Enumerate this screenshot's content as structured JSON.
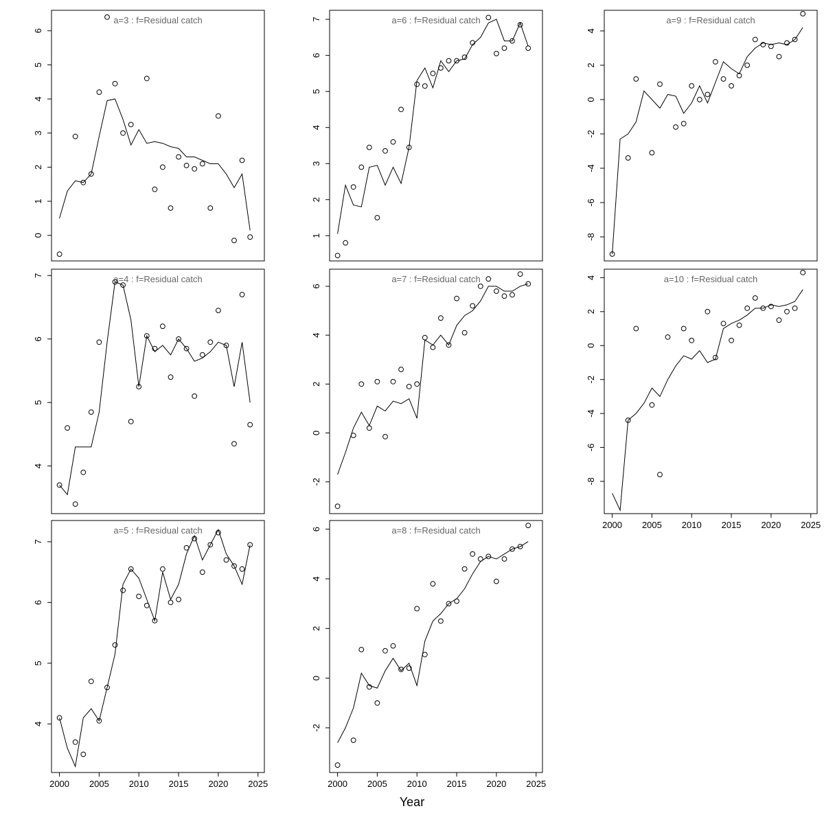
{
  "figure": {
    "xlabel": "Year",
    "background": "#ffffff",
    "title_color": "#666666",
    "line_color": "#000000",
    "point_color": "#000000",
    "line_years": [
      2000,
      2001,
      2002,
      2003,
      2004,
      2005,
      2006,
      2007,
      2008,
      2009,
      2010,
      2011,
      2012,
      2013,
      2014,
      2015,
      2016,
      2017,
      2018,
      2019,
      2020,
      2021,
      2022,
      2023,
      2024
    ],
    "x_ticks": [
      2000,
      2005,
      2010,
      2015,
      2020,
      2025
    ]
  },
  "chart_data": [
    {
      "id": "a3",
      "type": "line",
      "title": "a=3 : f=Residual catch",
      "xlim": [
        1999,
        2025.8
      ],
      "ylim": [
        -0.75,
        6.6
      ],
      "y_ticks": [
        0,
        1,
        2,
        3,
        4,
        5,
        6
      ],
      "line": {
        "y": [
          0.5,
          1.3,
          1.6,
          1.55,
          1.8,
          2.9,
          3.95,
          4.0,
          3.4,
          2.65,
          3.1,
          2.7,
          2.75,
          2.7,
          2.6,
          2.55,
          2.3,
          2.3,
          2.2,
          2.1,
          2.1,
          1.8,
          1.4,
          1.8,
          0.15
        ]
      },
      "points": {
        "x": [
          2000,
          2002,
          2003,
          2004,
          2005,
          2006,
          2007,
          2008,
          2009,
          2011,
          2012,
          2013,
          2014,
          2015,
          2016,
          2017,
          2018,
          2019,
          2020,
          2022,
          2023,
          2024
        ],
        "y": [
          -0.55,
          2.9,
          1.55,
          1.8,
          4.2,
          6.4,
          4.45,
          3.0,
          3.25,
          4.6,
          1.35,
          2.0,
          0.8,
          2.3,
          2.05,
          1.95,
          2.1,
          0.8,
          3.5,
          -0.15,
          2.2,
          -0.05
        ]
      }
    },
    {
      "id": "a4",
      "type": "line",
      "title": "a=4 : f=Residual catch",
      "xlim": [
        1999,
        2025.8
      ],
      "ylim": [
        3.25,
        7.1
      ],
      "y_ticks": [
        4,
        5,
        6,
        7
      ],
      "line": {
        "y": [
          3.7,
          3.55,
          4.3,
          4.3,
          4.3,
          4.85,
          5.95,
          6.9,
          6.85,
          6.3,
          5.25,
          6.05,
          5.8,
          5.9,
          5.75,
          6.0,
          5.85,
          5.65,
          5.7,
          5.8,
          5.95,
          5.9,
          5.25,
          5.95,
          5.0
        ]
      },
      "points": {
        "x": [
          2000,
          2001,
          2002,
          2003,
          2004,
          2005,
          2007,
          2008,
          2009,
          2010,
          2011,
          2012,
          2013,
          2014,
          2015,
          2016,
          2017,
          2018,
          2019,
          2020,
          2021,
          2022,
          2023,
          2024
        ],
        "y": [
          3.7,
          4.6,
          3.4,
          3.9,
          4.85,
          5.95,
          6.9,
          6.85,
          4.7,
          5.25,
          6.05,
          5.85,
          6.2,
          5.4,
          6.0,
          5.85,
          5.1,
          5.75,
          5.95,
          6.45,
          5.9,
          4.35,
          6.7,
          4.65
        ]
      }
    },
    {
      "id": "a5",
      "type": "line",
      "title": "a=5 : f=Residual catch",
      "xlim": [
        1999,
        2025.8
      ],
      "ylim": [
        3.2,
        7.35
      ],
      "y_ticks": [
        4,
        5,
        6,
        7
      ],
      "line": {
        "y": [
          4.1,
          3.6,
          3.3,
          4.1,
          4.25,
          4.05,
          4.6,
          5.15,
          6.3,
          6.55,
          6.4,
          6.05,
          5.7,
          6.5,
          6.05,
          6.3,
          6.8,
          7.1,
          6.7,
          6.95,
          7.2,
          6.8,
          6.6,
          6.3,
          6.95
        ]
      },
      "points": {
        "x": [
          2000,
          2002,
          2003,
          2004,
          2005,
          2006,
          2007,
          2008,
          2009,
          2010,
          2011,
          2012,
          2013,
          2014,
          2015,
          2016,
          2017,
          2018,
          2019,
          2020,
          2021,
          2022,
          2023,
          2024
        ],
        "y": [
          4.1,
          3.7,
          3.5,
          4.7,
          4.05,
          4.6,
          5.3,
          6.2,
          6.55,
          6.1,
          5.95,
          5.7,
          6.55,
          6.0,
          6.05,
          6.9,
          7.05,
          6.5,
          6.95,
          7.15,
          6.7,
          6.6,
          6.55,
          6.95
        ]
      }
    },
    {
      "id": "a6",
      "type": "line",
      "title": "a=6 : f=Residual catch",
      "xlim": [
        1999,
        2025.8
      ],
      "ylim": [
        0.3,
        7.25
      ],
      "y_ticks": [
        1,
        2,
        3,
        4,
        5,
        6,
        7
      ],
      "line": {
        "y": [
          1.05,
          2.4,
          1.85,
          1.8,
          2.9,
          2.95,
          2.4,
          2.9,
          2.45,
          3.45,
          5.3,
          5.65,
          5.1,
          5.85,
          5.55,
          5.85,
          5.9,
          6.3,
          6.5,
          6.9,
          7.0,
          6.4,
          6.4,
          6.9,
          6.25
        ]
      },
      "points": {
        "x": [
          2000,
          2001,
          2002,
          2003,
          2004,
          2005,
          2006,
          2007,
          2008,
          2009,
          2010,
          2011,
          2012,
          2013,
          2014,
          2015,
          2016,
          2017,
          2019,
          2020,
          2021,
          2022,
          2023,
          2024
        ],
        "y": [
          0.45,
          0.8,
          2.35,
          2.9,
          3.45,
          1.5,
          3.35,
          3.6,
          4.5,
          3.45,
          5.2,
          5.15,
          5.5,
          5.65,
          5.85,
          5.85,
          5.95,
          6.35,
          7.05,
          6.05,
          6.2,
          6.4,
          6.85,
          6.2
        ]
      }
    },
    {
      "id": "a7",
      "type": "line",
      "title": "a=7 : f=Residual catch",
      "xlim": [
        1999,
        2025.8
      ],
      "ylim": [
        -3.3,
        6.7
      ],
      "y_ticks": [
        -2,
        0,
        2,
        4,
        6
      ],
      "line": {
        "y": [
          -1.7,
          -0.8,
          0.2,
          0.85,
          0.3,
          1.1,
          0.9,
          1.3,
          1.2,
          1.4,
          0.6,
          3.8,
          3.6,
          4.0,
          3.6,
          4.4,
          4.8,
          5.0,
          5.4,
          6.0,
          6.0,
          5.8,
          5.8,
          6.0,
          6.1
        ]
      },
      "points": {
        "x": [
          2000,
          2002,
          2003,
          2004,
          2005,
          2006,
          2007,
          2008,
          2009,
          2010,
          2011,
          2012,
          2013,
          2014,
          2015,
          2016,
          2017,
          2018,
          2019,
          2020,
          2021,
          2022,
          2023,
          2024
        ],
        "y": [
          -3.0,
          -0.1,
          2.0,
          0.2,
          2.1,
          -0.15,
          2.1,
          2.6,
          1.9,
          2.0,
          3.9,
          3.5,
          4.7,
          3.6,
          5.5,
          4.1,
          5.2,
          6.0,
          6.3,
          5.8,
          5.6,
          5.65,
          6.5,
          6.1
        ]
      }
    },
    {
      "id": "a8",
      "type": "line",
      "title": "a=8 : f=Residual catch",
      "xlim": [
        1999,
        2025.8
      ],
      "ylim": [
        -3.8,
        6.35
      ],
      "y_ticks": [
        -2,
        0,
        2,
        4,
        6
      ],
      "line": {
        "y": [
          -2.6,
          -2.0,
          -1.2,
          0.2,
          -0.3,
          -0.4,
          0.3,
          0.8,
          0.3,
          0.6,
          -0.3,
          1.5,
          2.3,
          2.6,
          3.0,
          3.2,
          3.6,
          4.2,
          4.7,
          4.9,
          4.8,
          5.0,
          5.2,
          5.3,
          5.5
        ]
      },
      "points": {
        "x": [
          2000,
          2002,
          2003,
          2004,
          2005,
          2006,
          2007,
          2008,
          2009,
          2010,
          2011,
          2012,
          2013,
          2014,
          2015,
          2016,
          2017,
          2018,
          2019,
          2020,
          2021,
          2022,
          2023,
          2024
        ],
        "y": [
          -3.5,
          -2.5,
          1.15,
          -0.35,
          -1.0,
          1.1,
          1.3,
          0.35,
          0.4,
          2.8,
          0.95,
          3.8,
          2.3,
          3.0,
          3.1,
          4.4,
          5.0,
          4.8,
          4.9,
          3.9,
          4.8,
          5.2,
          5.3,
          6.15
        ]
      }
    },
    {
      "id": "a9",
      "type": "line",
      "title": "a=9 : f=Residual catch",
      "xlim": [
        1999,
        2025.8
      ],
      "ylim": [
        -9.4,
        5.2
      ],
      "y_ticks": [
        -8,
        -6,
        -4,
        -2,
        0,
        2,
        4
      ],
      "line": {
        "y": [
          -9.0,
          -2.3,
          -2.0,
          -1.3,
          0.5,
          0.0,
          -0.5,
          0.3,
          0.2,
          -0.8,
          -0.2,
          0.8,
          -0.2,
          1.0,
          2.2,
          1.8,
          1.5,
          2.5,
          3.0,
          3.3,
          3.2,
          3.3,
          3.2,
          3.5,
          4.2
        ]
      },
      "points": {
        "x": [
          2000,
          2002,
          2003,
          2005,
          2006,
          2008,
          2009,
          2010,
          2011,
          2012,
          2013,
          2014,
          2015,
          2016,
          2017,
          2018,
          2019,
          2020,
          2021,
          2022,
          2023,
          2024
        ],
        "y": [
          -9.0,
          -3.4,
          1.2,
          -3.1,
          0.9,
          -1.6,
          -1.4,
          0.8,
          0.0,
          0.3,
          2.2,
          1.2,
          0.8,
          1.4,
          2.0,
          3.5,
          3.2,
          3.1,
          2.5,
          3.3,
          3.5,
          5.0
        ]
      }
    },
    {
      "id": "a10",
      "type": "line",
      "title": "a=10 : f=Residual catch",
      "xlim": [
        1999,
        2025.8
      ],
      "ylim": [
        -9.9,
        4.5
      ],
      "y_ticks": [
        -8,
        -6,
        -4,
        -2,
        0,
        2,
        4
      ],
      "line": {
        "y": [
          -8.7,
          -9.7,
          -4.4,
          -4.0,
          -3.4,
          -2.5,
          -3.0,
          -2.0,
          -1.2,
          -0.6,
          -0.8,
          -0.3,
          -1.0,
          -0.8,
          1.0,
          1.3,
          1.5,
          1.8,
          2.2,
          2.2,
          2.4,
          2.3,
          2.4,
          2.6,
          3.3
        ]
      },
      "points": {
        "x": [
          2002,
          2003,
          2005,
          2006,
          2007,
          2009,
          2010,
          2012,
          2013,
          2014,
          2015,
          2016,
          2017,
          2018,
          2019,
          2020,
          2021,
          2022,
          2023,
          2024
        ],
        "y": [
          -4.4,
          1.0,
          -3.5,
          -7.6,
          0.5,
          1.0,
          0.3,
          2.0,
          -0.7,
          1.3,
          0.3,
          1.2,
          2.2,
          2.8,
          2.2,
          2.3,
          1.5,
          2.0,
          2.2,
          4.3
        ]
      }
    }
  ]
}
